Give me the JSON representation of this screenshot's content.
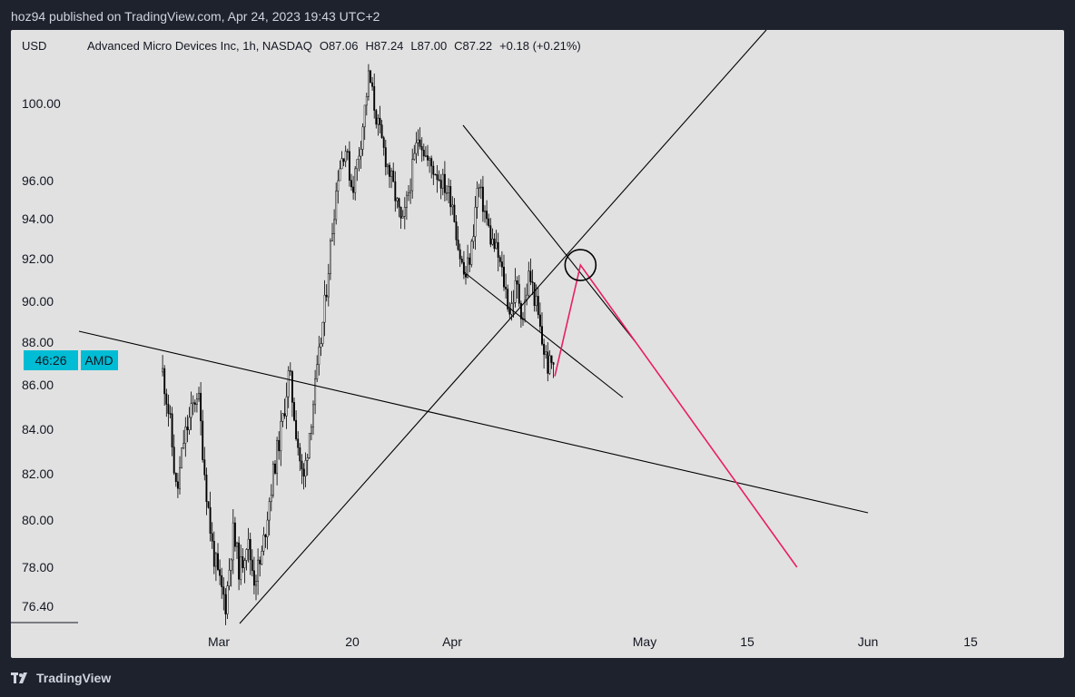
{
  "header": {
    "text": "hoz94 published on TradingView.com, Apr 24, 2023 19:43 UTC+2"
  },
  "footer": {
    "brand": "TradingView"
  },
  "colors": {
    "background": "#1e222d",
    "chart_bg": "#e1e1e1",
    "candles": "#000000",
    "projection": "#e91e63",
    "price_tag": "#00bcd4"
  },
  "legend": {
    "currency": "USD",
    "symbol": "Advanced Micro Devices Inc, 1h, NASDAQ",
    "open": "O87.06",
    "high": "H87.24",
    "low": "L87.00",
    "close": "C87.22",
    "change": "+0.18 (+0.21%)"
  },
  "price_tag": {
    "countdown": "46:26",
    "ticker": "AMD"
  },
  "chart_data": {
    "type": "candlestick",
    "title": "Advanced Micro Devices Inc, 1h, NASDAQ",
    "ylabel": "USD",
    "y_ticks": [
      "100.00",
      "96.00",
      "94.00",
      "92.00",
      "90.00",
      "88.00",
      "86.00",
      "84.00",
      "82.00",
      "80.00",
      "78.00",
      "76.40"
    ],
    "x_ticks": [
      "Mar",
      "20",
      "Apr",
      "May",
      "15",
      "Jun",
      "15"
    ],
    "price_path": [
      [
        "2023-02-21",
        86.6
      ],
      [
        "2023-02-22",
        84.5
      ],
      [
        "2023-02-23",
        81.0
      ],
      [
        "2023-02-24",
        83.5
      ],
      [
        "2023-02-26",
        85.8
      ],
      [
        "2023-02-27",
        82.0
      ],
      [
        "2023-02-28",
        79.0
      ],
      [
        "2023-03-01",
        77.4
      ],
      [
        "2023-03-02",
        76.5
      ],
      [
        "2023-03-03",
        79.5
      ],
      [
        "2023-03-04",
        77.8
      ],
      [
        "2023-03-05",
        79.2
      ],
      [
        "2023-03-06",
        77.6
      ],
      [
        "2023-03-07",
        78.2
      ],
      [
        "2023-03-08",
        80.5
      ],
      [
        "2023-03-09",
        82.5
      ],
      [
        "2023-03-10",
        84.2
      ],
      [
        "2023-03-11",
        86.6
      ],
      [
        "2023-03-12",
        84.0
      ],
      [
        "2023-03-13",
        81.5
      ],
      [
        "2023-03-14",
        84.2
      ],
      [
        "2023-03-15",
        86.5
      ],
      [
        "2023-03-16",
        89.5
      ],
      [
        "2023-03-17",
        93.0
      ],
      [
        "2023-03-18",
        96.5
      ],
      [
        "2023-03-19",
        97.8
      ],
      [
        "2023-03-20",
        95.5
      ],
      [
        "2023-03-21",
        98.0
      ],
      [
        "2023-03-22",
        101.5
      ],
      [
        "2023-03-23",
        99.0
      ],
      [
        "2023-03-24",
        97.2
      ],
      [
        "2023-03-25",
        95.5
      ],
      [
        "2023-03-26",
        93.5
      ],
      [
        "2023-03-27",
        96.0
      ],
      [
        "2023-03-28",
        98.5
      ],
      [
        "2023-03-29",
        97.0
      ],
      [
        "2023-03-30",
        96.5
      ],
      [
        "2023-03-31",
        95.8
      ],
      [
        "2023-04-01",
        95.0
      ],
      [
        "2023-04-02",
        92.5
      ],
      [
        "2023-04-03",
        91.0
      ],
      [
        "2023-04-04",
        92.5
      ],
      [
        "2023-04-05",
        95.8
      ],
      [
        "2023-04-06",
        94.5
      ],
      [
        "2023-04-07",
        93.0
      ],
      [
        "2023-04-08",
        92.3
      ],
      [
        "2023-04-09",
        91.0
      ],
      [
        "2023-04-10",
        89.5
      ],
      [
        "2023-04-11",
        90.8
      ],
      [
        "2023-04-12",
        89.2
      ],
      [
        "2023-04-13",
        91.3
      ],
      [
        "2023-04-14",
        90.0
      ],
      [
        "2023-04-15",
        88.0
      ],
      [
        "2023-04-16",
        86.8
      ],
      [
        "2023-04-17",
        87.2
      ]
    ],
    "projection": [
      [
        "2023-04-17",
        86.4
      ],
      [
        "2023-04-21",
        91.7
      ],
      [
        "2023-05-22",
        78.0
      ]
    ],
    "annotation_circle": [
      "2023-04-21",
      91.7
    ]
  }
}
